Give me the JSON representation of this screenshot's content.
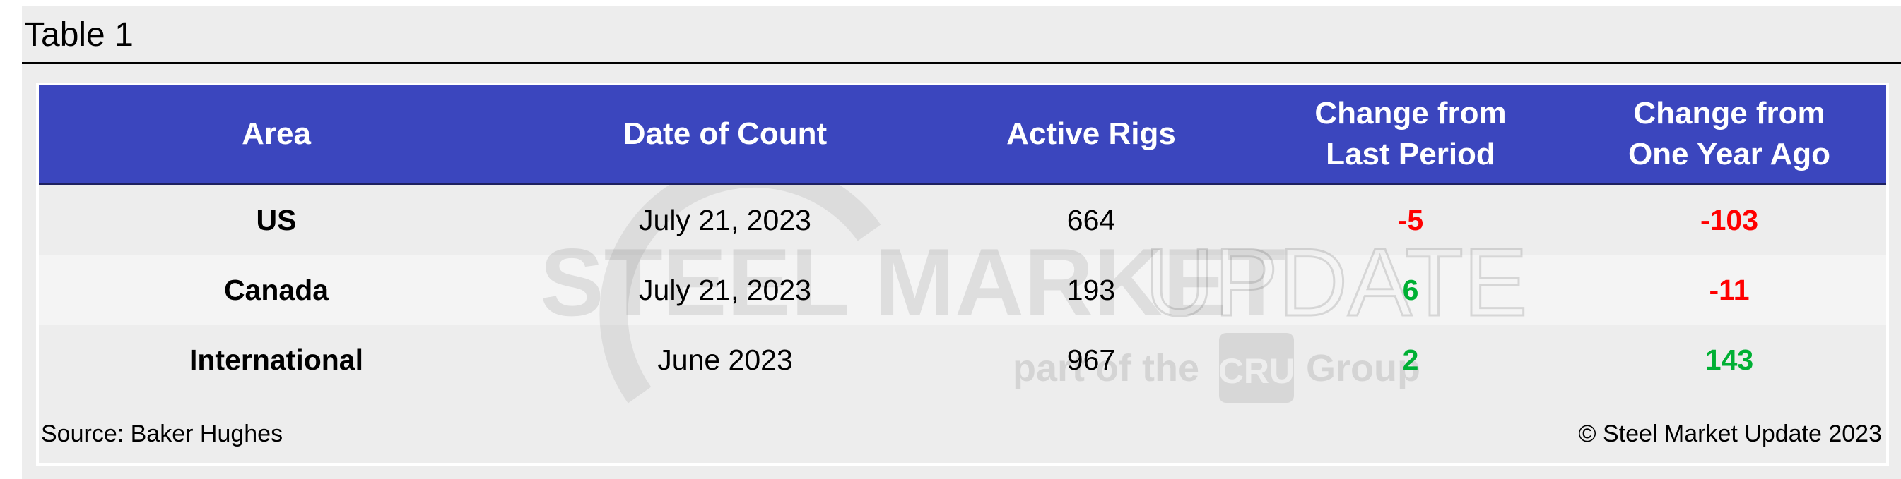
{
  "title": "Table 1",
  "columns": [
    "Area",
    "Date of Count",
    "Active Rigs",
    "Change from\nLast Period",
    "Change from\nOne Year Ago"
  ],
  "rows": [
    {
      "area": "US",
      "date": "July 21, 2023",
      "rigs": "664",
      "change_period": "-5",
      "change_year": "-103",
      "change_period_color": "#ff0000",
      "change_year_color": "#ff0000"
    },
    {
      "area": "Canada",
      "date": "July 21, 2023",
      "rigs": "193",
      "change_period": "6",
      "change_year": "-11",
      "change_period_color": "#00b034",
      "change_year_color": "#ff0000"
    },
    {
      "area": "International",
      "date": "June 2023",
      "rigs": "967",
      "change_period": "2",
      "change_year": "143",
      "change_period_color": "#00b034",
      "change_year_color": "#00b034"
    }
  ],
  "source": "Source: Baker Hughes",
  "copyright": "© Steel Market Update 2023",
  "watermark": {
    "brand_bold": "STEEL MARKET",
    "brand_light": "UPDATE",
    "part_of": "part of the",
    "cru": "CRU",
    "group": "Group"
  },
  "colors": {
    "header": "#3b46be",
    "negative": "#ff0000",
    "positive": "#00b034"
  }
}
